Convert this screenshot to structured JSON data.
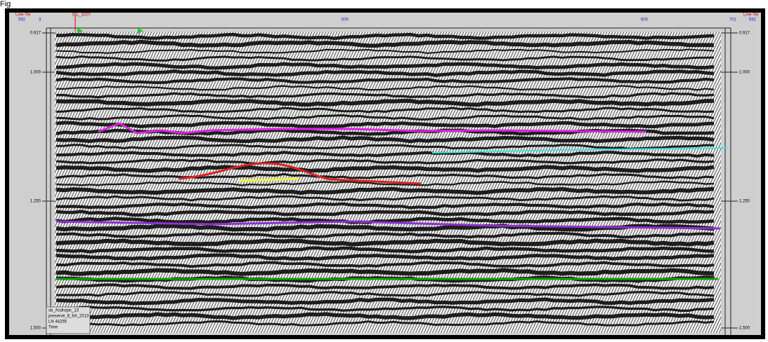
{
  "caption": "Fig",
  "top_left": {
    "label": "Line-Tie",
    "number": "592"
  },
  "top_right": {
    "label": "Line-Tie",
    "number": "592"
  },
  "top_ticks": [
    {
      "label": "3"
    },
    {
      "label": "IDL_3207"
    },
    {
      "label": "500"
    },
    {
      "label": "600"
    },
    {
      "label": "701"
    }
  ],
  "left_axis": [
    "0.917",
    "1.000",
    "1.250",
    "1.500"
  ],
  "right_axis": [
    "0.917",
    "1.000",
    "1.250",
    "1.500"
  ],
  "info_box": [
    "sb_Acdropic_13",
    "preserve_8_6A_2013",
    "LN 44255",
    "Time"
  ]
}
